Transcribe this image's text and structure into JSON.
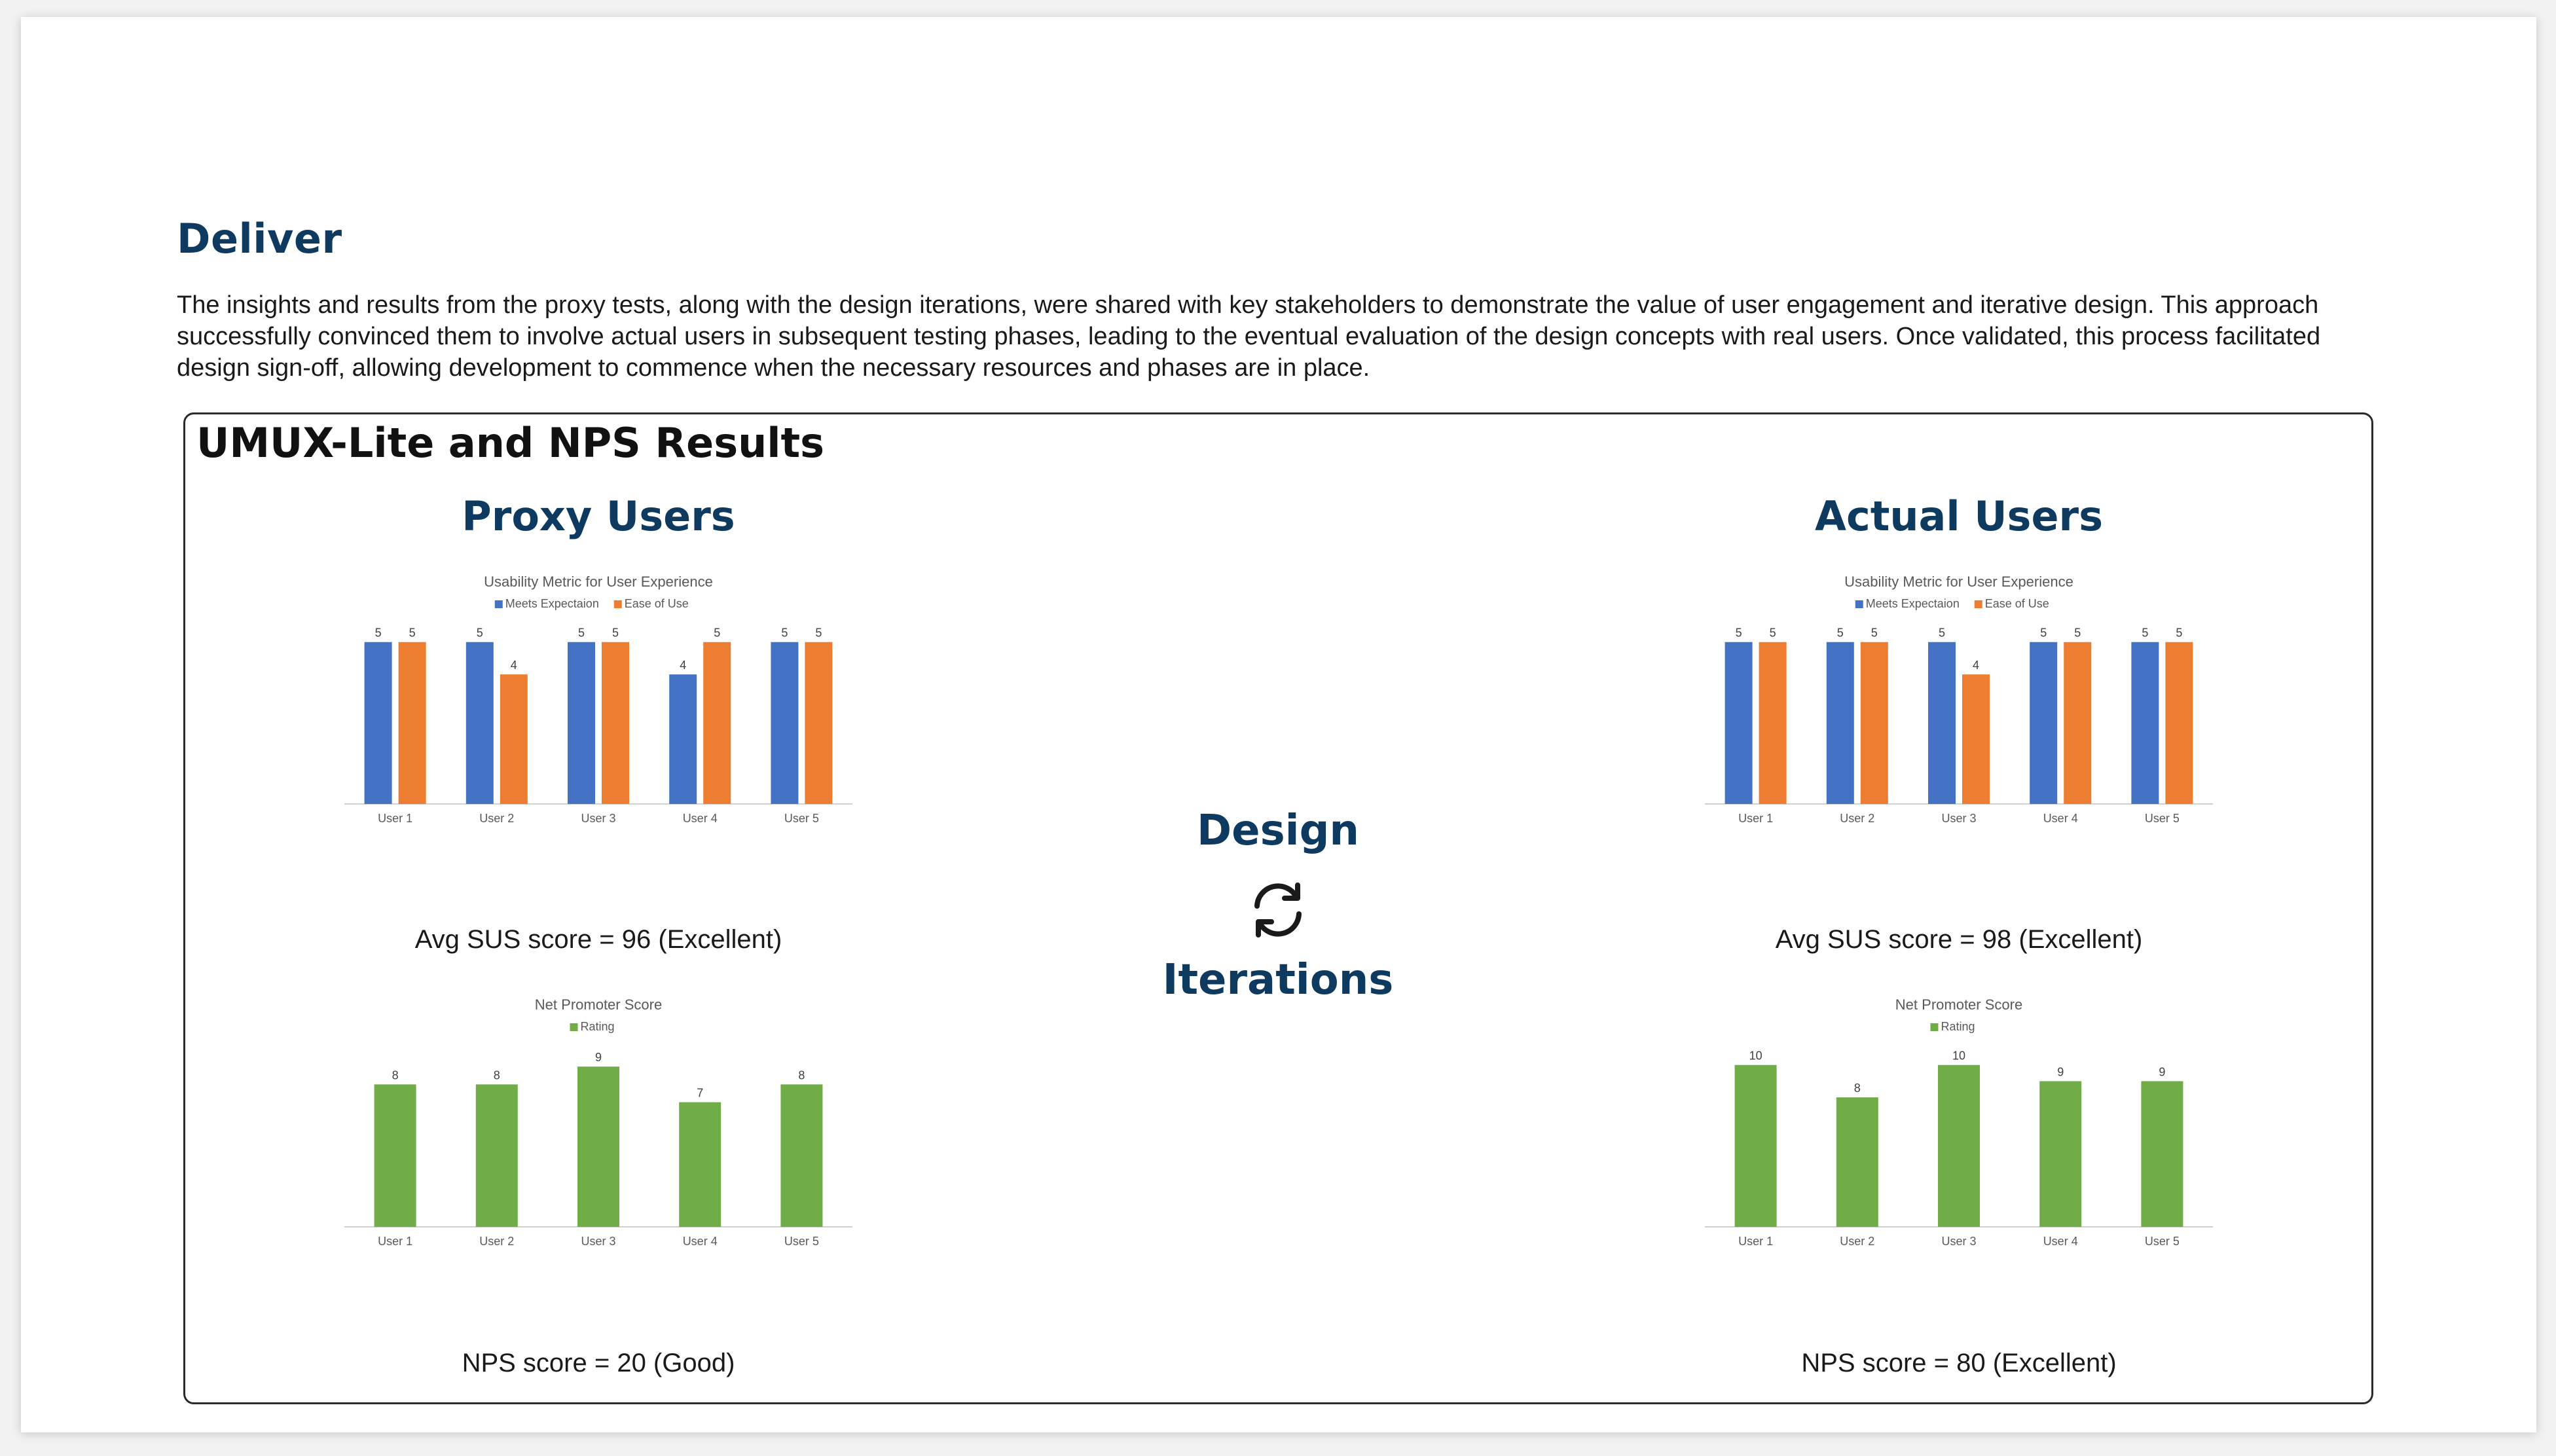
{
  "section": {
    "heading": "Deliver",
    "intro": "The insights and results from the proxy tests, along with the design iterations, were shared with key stakeholders to demonstrate the value of user engagement and iterative design. This approach successfully convinced them to involve actual users in subsequent testing phases, leading to the eventual evaluation of the design concepts with real users. Once validated, this process facilitated design sign-off, allowing development to commence when the necessary resources and phases are in place."
  },
  "panel": {
    "title": "UMUX-Lite and NPS Results",
    "proxy_title": "Proxy Users",
    "actual_title": "Actual Users",
    "center_top": "Design",
    "center_bottom": "Iterations",
    "cycle_icon": "refresh-cycle-icon",
    "proxy_sus": "Avg SUS score = 96 (Excellent)",
    "proxy_nps": "NPS score = 20 (Good)",
    "actual_sus": "Avg SUS score = 98 (Excellent)",
    "actual_nps": "NPS score = 80 (Excellent)"
  },
  "colors": {
    "blue": "#4472c4",
    "orange": "#ed7d31",
    "green": "#70ad47",
    "navy": "#0e3a60"
  },
  "chart_data": [
    {
      "id": "proxy-umux",
      "type": "bar",
      "title": "Usability Metric for User Experience",
      "categories": [
        "User 1",
        "User 2",
        "User 3",
        "User 4",
        "User 5"
      ],
      "series": [
        {
          "name": "Meets Expectaion",
          "values": [
            5,
            5,
            5,
            4,
            5
          ],
          "color": "#4472c4"
        },
        {
          "name": "Ease of Use",
          "values": [
            5,
            4,
            5,
            5,
            5
          ],
          "color": "#ed7d31"
        }
      ],
      "ylim": [
        0,
        5.5
      ]
    },
    {
      "id": "proxy-nps",
      "type": "bar",
      "title": "Net Promoter Score",
      "categories": [
        "User 1",
        "User 2",
        "User 3",
        "User 4",
        "User 5"
      ],
      "series": [
        {
          "name": "Rating",
          "values": [
            8,
            8,
            9,
            7,
            8
          ],
          "color": "#70ad47"
        }
      ],
      "ylim": [
        0,
        10
      ]
    },
    {
      "id": "actual-umux",
      "type": "bar",
      "title": "Usability Metric for User Experience",
      "categories": [
        "User 1",
        "User 2",
        "User 3",
        "User 4",
        "User 5"
      ],
      "series": [
        {
          "name": "Meets Expectaion",
          "values": [
            5,
            5,
            5,
            5,
            5
          ],
          "color": "#4472c4"
        },
        {
          "name": "Ease of Use",
          "values": [
            5,
            5,
            4,
            5,
            5
          ],
          "color": "#ed7d31"
        }
      ],
      "ylim": [
        0,
        5.5
      ]
    },
    {
      "id": "actual-nps",
      "type": "bar",
      "title": "Net Promoter Score",
      "categories": [
        "User 1",
        "User 2",
        "User 3",
        "User 4",
        "User 5"
      ],
      "series": [
        {
          "name": "Rating",
          "values": [
            10,
            8,
            10,
            9,
            9
          ],
          "color": "#70ad47"
        }
      ],
      "ylim": [
        0,
        11
      ]
    }
  ]
}
